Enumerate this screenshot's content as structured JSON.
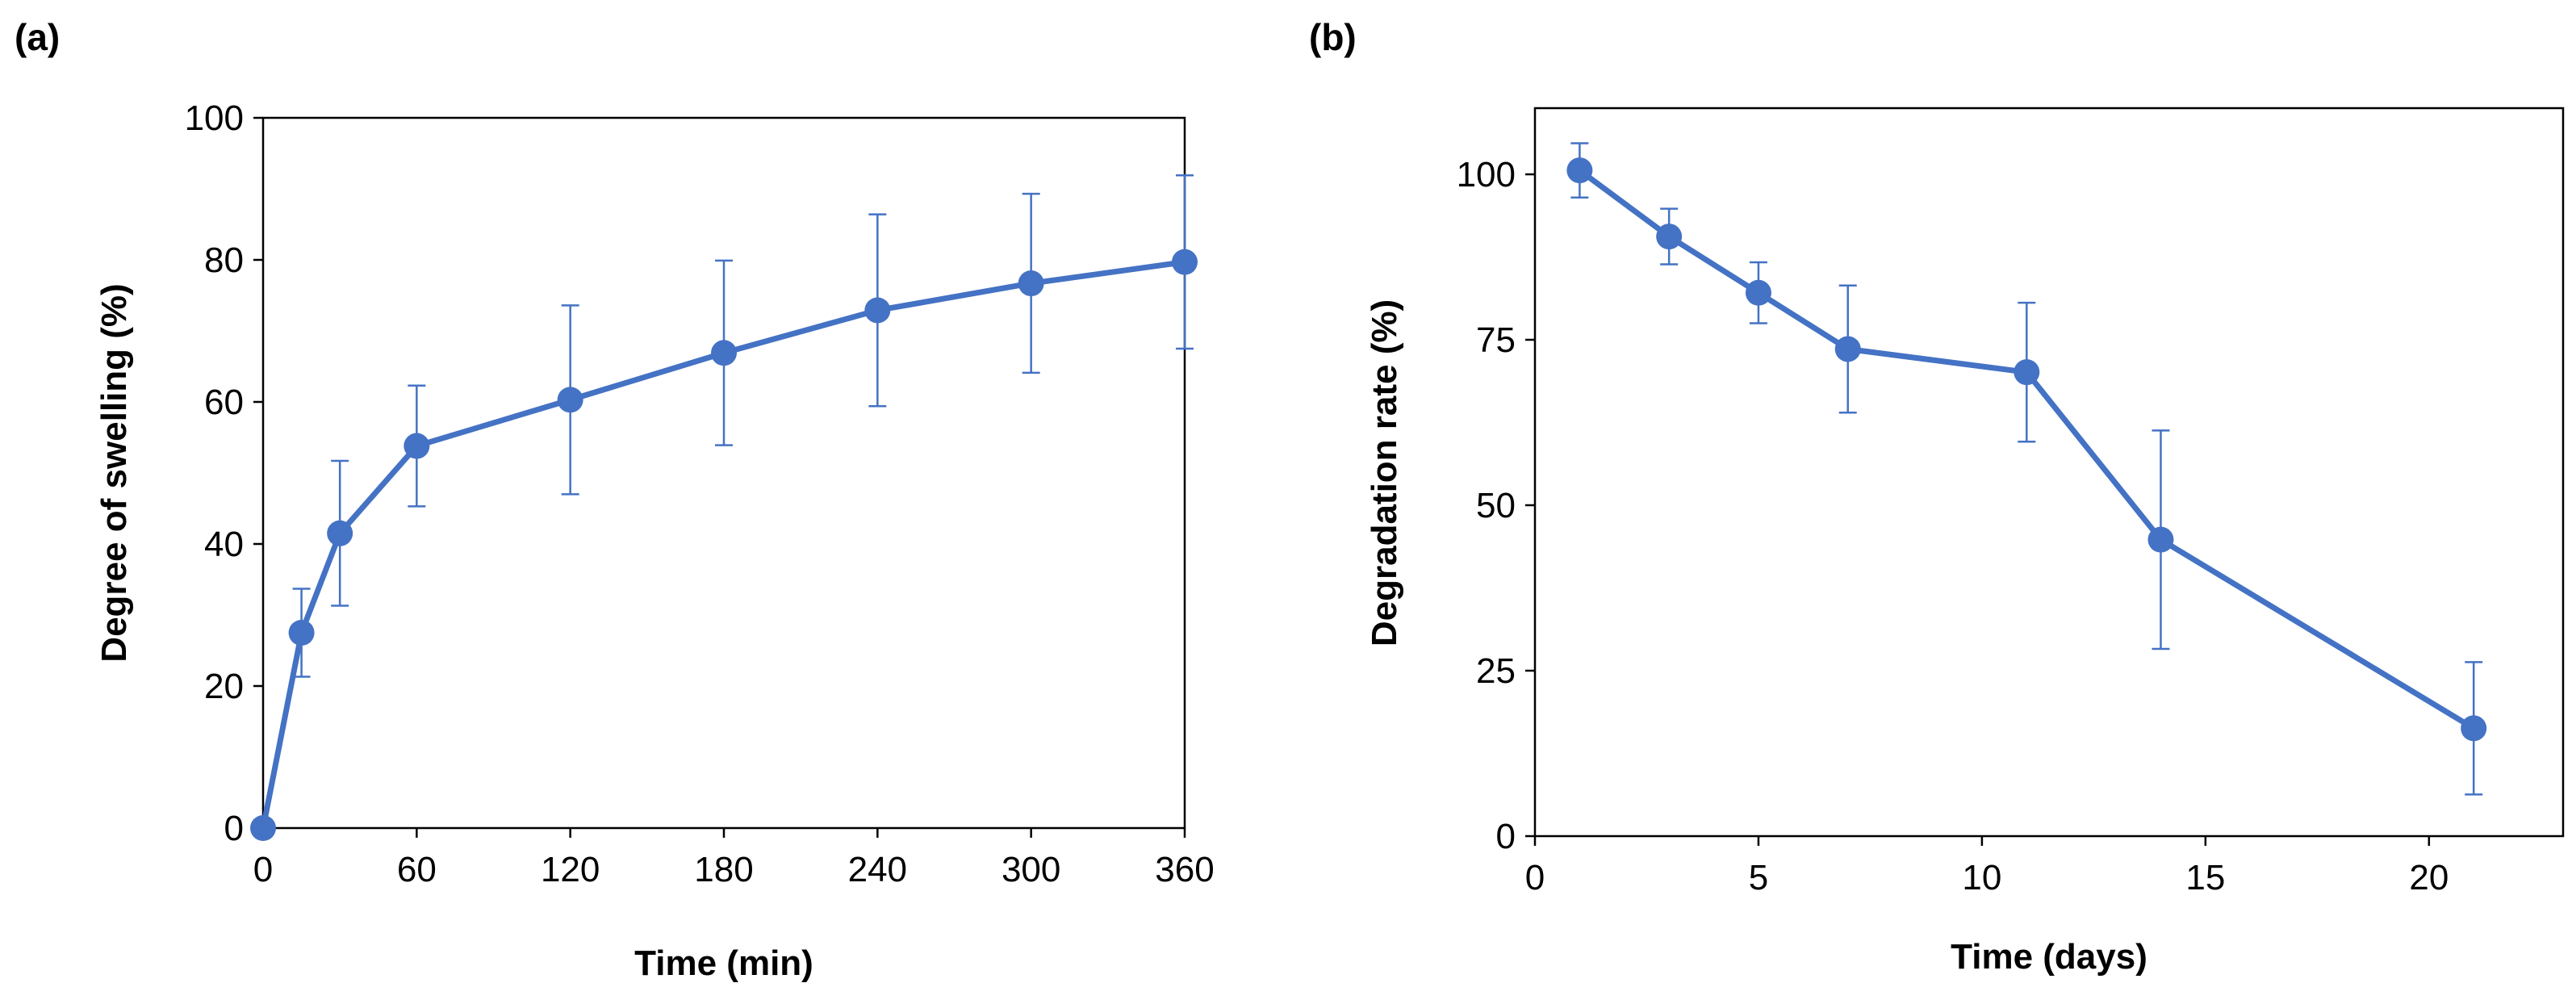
{
  "chart_data": [
    {
      "panel_label": "(a)",
      "type": "line",
      "x": [
        0,
        15,
        30,
        60,
        120,
        180,
        240,
        300,
        360
      ],
      "series": [
        {
          "name": "Degree of swelling",
          "values": [
            0,
            27.5,
            41.5,
            53.8,
            60.3,
            66.9,
            72.9,
            76.7,
            79.7
          ],
          "error": [
            0,
            6.2,
            10.2,
            8.5,
            13.3,
            13.0,
            13.5,
            12.6,
            12.2
          ]
        }
      ],
      "xlabel": "Time (min)",
      "ylabel": "Degree of swelling (%)",
      "xlim": [
        0,
        360
      ],
      "ylim": [
        0,
        100
      ],
      "xticks": [
        0,
        60,
        120,
        180,
        240,
        300,
        360
      ],
      "yticks": [
        0,
        20,
        40,
        60,
        80,
        100
      ],
      "grid": false,
      "color": "#4472c4"
    },
    {
      "panel_label": "(b)",
      "type": "line",
      "x": [
        1,
        3,
        5,
        7,
        11,
        14,
        21
      ],
      "series": [
        {
          "name": "Degradation rate",
          "values": [
            100.6,
            90.6,
            82.1,
            73.6,
            70.1,
            44.8,
            16.3
          ],
          "error": [
            4.1,
            4.2,
            4.6,
            9.6,
            10.5,
            16.5,
            10.0
          ]
        }
      ],
      "xlabel": "Time (days)",
      "ylabel": "Degradation rate (%)",
      "xlim": [
        0,
        23
      ],
      "ylim": [
        0,
        110
      ],
      "xticks": [
        0,
        5,
        10,
        15,
        20
      ],
      "yticks": [
        0,
        25,
        50,
        75,
        100
      ],
      "grid": false,
      "color": "#4472c4"
    }
  ]
}
